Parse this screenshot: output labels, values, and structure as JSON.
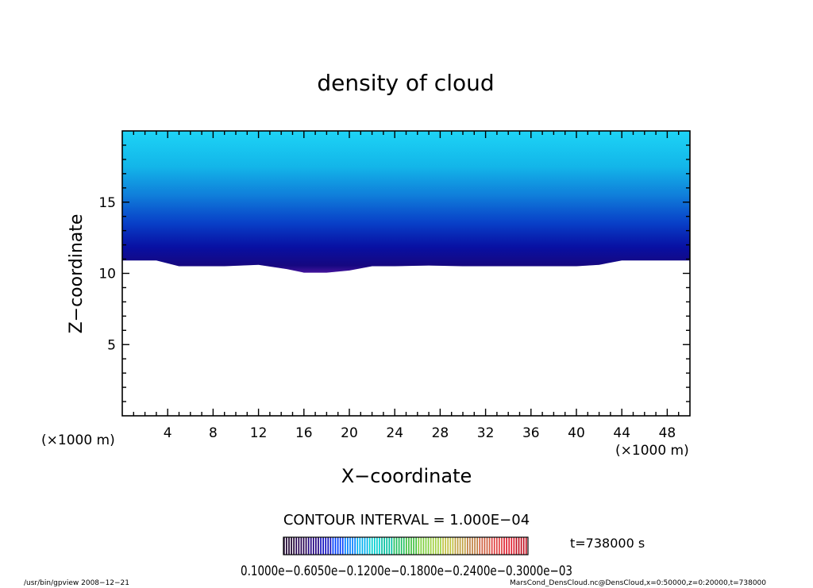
{
  "chart_data": {
    "type": "heatmap",
    "title": "density of cloud",
    "xlabel": "X−coordinate",
    "ylabel": "Z−coordinate",
    "x_unit": "(×1000 m)",
    "y_unit": "(×1000 m)",
    "xlim": [
      0,
      50
    ],
    "ylim": [
      0,
      20
    ],
    "x_ticks": [
      4,
      8,
      12,
      16,
      20,
      24,
      28,
      32,
      36,
      40,
      44,
      48
    ],
    "y_ticks": [
      5,
      10,
      15
    ],
    "cloud_base": {
      "x": [
        0,
        3,
        5,
        7,
        9,
        12,
        14.5,
        16,
        18,
        20,
        22,
        24,
        27,
        30,
        33,
        36,
        40,
        42,
        44,
        47,
        48,
        50
      ],
      "z": [
        10.9,
        10.9,
        10.5,
        10.5,
        10.5,
        10.6,
        10.3,
        10.05,
        10.05,
        10.2,
        10.5,
        10.5,
        10.55,
        10.5,
        10.5,
        10.5,
        10.5,
        10.6,
        10.9,
        10.9,
        10.9,
        10.9
      ]
    },
    "contour_interval": "CONTOUR INTERVAL = 1.000E−04",
    "colorbar": {
      "labels_text": "0.1000e−0.6050e−0.1200e−0.1800e−0.2400e−0.3000e−03",
      "colors": [
        "#1c0030",
        "#240050",
        "#200080",
        "#1010c0",
        "#0040ff",
        "#0080ff",
        "#00b0f0",
        "#00d0d0",
        "#00c0a0",
        "#20c060",
        "#40c040",
        "#80d040",
        "#a0d040",
        "#c0c040",
        "#c0a040",
        "#c08040",
        "#d06040",
        "#e04040",
        "#e02030",
        "#c01020"
      ]
    },
    "time_label": "t=738000 s",
    "footer_left": "/usr/bin/gpview  2008−12−21",
    "footer_right": "MarsCond_DensCloud.nc@DensCloud,x=0:50000,z=0:20000,t=738000"
  }
}
